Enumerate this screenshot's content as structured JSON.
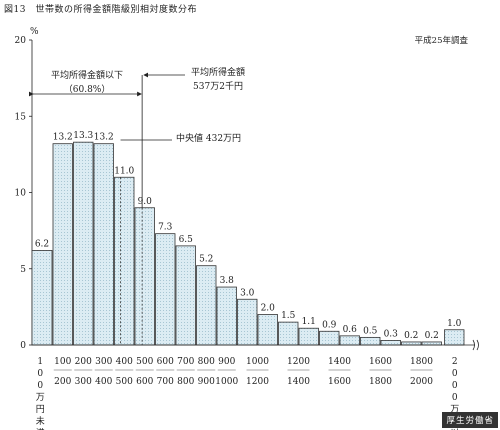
{
  "figure_title": "図13　世帯数の所得金額階級別相対度数分布",
  "survey_note": "平成25年調査",
  "source_badge": "厚生労働省",
  "chart_data": {
    "type": "bar",
    "ylabel": "%",
    "ylim": [
      0,
      20
    ],
    "yticks": [
      0,
      5,
      10,
      15,
      20
    ],
    "grid": false,
    "x_tick_labels": [
      "100",
      "200",
      "300",
      "400",
      "500",
      "600",
      "700",
      "800",
      "900",
      "1000",
      "1200",
      "1400",
      "1600",
      "1800",
      "2000"
    ],
    "categories": [
      "100万円未満",
      "100-200",
      "200-300",
      "300-400",
      "400-500",
      "500-600",
      "600-700",
      "700-800",
      "800-900",
      "900-1000",
      "1000-1100",
      "1100-1200",
      "1200-1300",
      "1300-1400",
      "1400-1500",
      "1500-1600",
      "1600-1700",
      "1700-1800",
      "1800-1900",
      "1900-2000",
      "2000万円以上"
    ],
    "values": [
      6.2,
      13.2,
      13.3,
      13.2,
      11.0,
      9.0,
      7.3,
      6.5,
      5.2,
      3.8,
      3.0,
      2.0,
      1.5,
      1.1,
      0.9,
      0.6,
      0.5,
      0.3,
      0.2,
      0.2,
      1.0
    ],
    "value_labels": [
      "6.2",
      "13.2",
      "13.3",
      "13.2",
      "11.0",
      "9.0",
      "7.3",
      "6.5",
      "5.2",
      "3.8",
      "3.0",
      "2.0",
      "1.5",
      "1.1",
      "0.9",
      "0.6",
      "0.5",
      "0.3",
      "0.2",
      "0.2",
      "1.0"
    ],
    "first_category_label": "100万円未満",
    "last_category_label": "2000万円以上",
    "reference_lines": [
      {
        "name": "median",
        "value": 432,
        "label": "中央値 432万円"
      },
      {
        "name": "mean",
        "value": 537.2,
        "label_line1": "平均所得金額",
        "label_line2": "537万2千円"
      }
    ],
    "below_mean_label_line1": "平均所得金額以下",
    "below_mean_label_line2": "（60.8%）"
  }
}
